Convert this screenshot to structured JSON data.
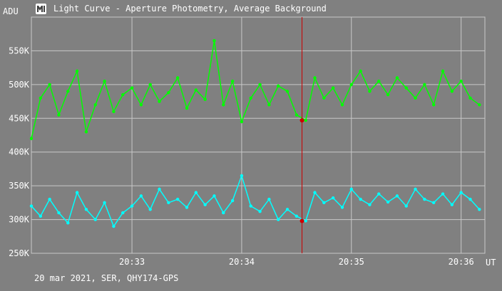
{
  "window": {
    "title": "Light Curve - Aperture Photometry, Average Background",
    "icon": "light-curve-app-icon"
  },
  "footer": {
    "caption": "20 mar 2021, SER, QHY174-GPS"
  },
  "colors": {
    "background": "#808080",
    "grid": "#c8c8c8",
    "series_1": "#00ff00",
    "series_2": "#00ffff",
    "cursor": "#cc0000"
  },
  "chart_data": {
    "type": "line",
    "title": "Light Curve - Aperture Photometry, Average Background",
    "ylabel": "ADU",
    "xlabel": "UT",
    "ylim": [
      250000,
      600000
    ],
    "xlim": [
      "20:32:05",
      "20:36:13"
    ],
    "grid": true,
    "yticks": [
      {
        "value": 250000,
        "label": "250K"
      },
      {
        "value": 300000,
        "label": "300K"
      },
      {
        "value": 350000,
        "label": "350K"
      },
      {
        "value": 400000,
        "label": "400K"
      },
      {
        "value": 450000,
        "label": "450K"
      },
      {
        "value": 500000,
        "label": "500K"
      },
      {
        "value": 550000,
        "label": "550K"
      }
    ],
    "xticks": [
      {
        "value": "20:33:00",
        "label": "20:33"
      },
      {
        "value": "20:34:00",
        "label": "20:34"
      },
      {
        "value": "20:35:00",
        "label": "20:35"
      },
      {
        "value": "20:36:00",
        "label": "20:36"
      }
    ],
    "cursor": {
      "x": "20:34:33",
      "values": [
        447000,
        298000
      ]
    },
    "series": [
      {
        "color": "#00ff00",
        "x": [
          "20:32:05",
          "20:32:10",
          "20:32:15",
          "20:32:20",
          "20:32:25",
          "20:32:30",
          "20:32:35",
          "20:32:40",
          "20:32:45",
          "20:32:50",
          "20:32:55",
          "20:33:00",
          "20:33:05",
          "20:33:10",
          "20:33:15",
          "20:33:20",
          "20:33:25",
          "20:33:30",
          "20:33:35",
          "20:33:40",
          "20:33:45",
          "20:33:50",
          "20:33:55",
          "20:34:00",
          "20:34:05",
          "20:34:10",
          "20:34:15",
          "20:34:20",
          "20:34:25",
          "20:34:30",
          "20:34:35",
          "20:34:40",
          "20:34:45",
          "20:34:50",
          "20:34:55",
          "20:35:00",
          "20:35:05",
          "20:35:10",
          "20:35:15",
          "20:35:20",
          "20:35:25",
          "20:35:30",
          "20:35:35",
          "20:35:40",
          "20:35:45",
          "20:35:50",
          "20:35:55",
          "20:36:00",
          "20:36:05",
          "20:36:10"
        ],
        "values": [
          420000,
          480000,
          500000,
          455000,
          490000,
          520000,
          430000,
          470000,
          505000,
          460000,
          485000,
          495000,
          470000,
          500000,
          475000,
          488000,
          510000,
          465000,
          492000,
          478000,
          565000,
          470000,
          505000,
          445000,
          480000,
          500000,
          470000,
          498000,
          490000,
          455000,
          447000,
          510000,
          480000,
          495000,
          470000,
          500000,
          520000,
          490000,
          505000,
          485000,
          510000,
          495000,
          480000,
          500000,
          470000,
          520000,
          490000,
          505000,
          480000,
          470000
        ]
      },
      {
        "color": "#00ffff",
        "x": [
          "20:32:05",
          "20:32:10",
          "20:32:15",
          "20:32:20",
          "20:32:25",
          "20:32:30",
          "20:32:35",
          "20:32:40",
          "20:32:45",
          "20:32:50",
          "20:32:55",
          "20:33:00",
          "20:33:05",
          "20:33:10",
          "20:33:15",
          "20:33:20",
          "20:33:25",
          "20:33:30",
          "20:33:35",
          "20:33:40",
          "20:33:45",
          "20:33:50",
          "20:33:55",
          "20:34:00",
          "20:34:05",
          "20:34:10",
          "20:34:15",
          "20:34:20",
          "20:34:25",
          "20:34:30",
          "20:34:35",
          "20:34:40",
          "20:34:45",
          "20:34:50",
          "20:34:55",
          "20:35:00",
          "20:35:05",
          "20:35:10",
          "20:35:15",
          "20:35:20",
          "20:35:25",
          "20:35:30",
          "20:35:35",
          "20:35:40",
          "20:35:45",
          "20:35:50",
          "20:35:55",
          "20:36:00",
          "20:36:05",
          "20:36:10"
        ],
        "values": [
          320000,
          305000,
          330000,
          310000,
          295000,
          340000,
          315000,
          300000,
          325000,
          290000,
          310000,
          320000,
          335000,
          315000,
          345000,
          325000,
          330000,
          318000,
          340000,
          322000,
          335000,
          310000,
          328000,
          365000,
          320000,
          312000,
          330000,
          300000,
          315000,
          305000,
          298000,
          340000,
          325000,
          332000,
          318000,
          345000,
          330000,
          322000,
          338000,
          326000,
          335000,
          320000,
          345000,
          330000,
          325000,
          338000,
          322000,
          340000,
          330000,
          315000
        ]
      }
    ]
  }
}
